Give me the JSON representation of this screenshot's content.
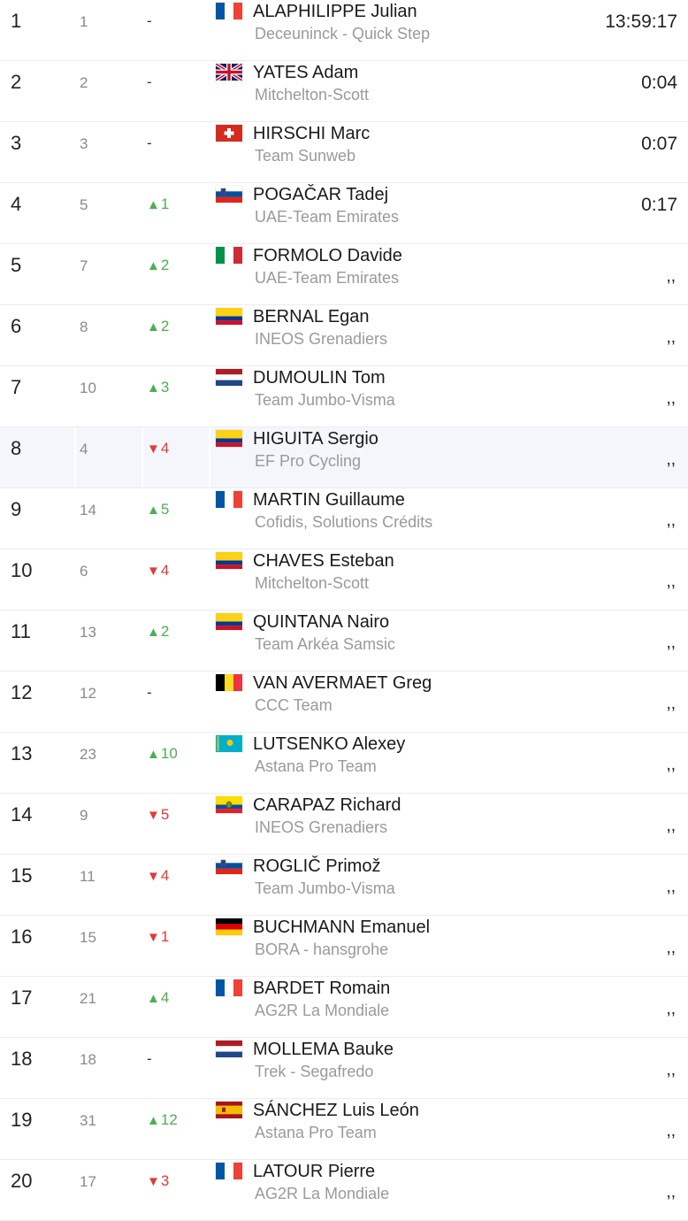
{
  "riders": [
    {
      "rank": "1",
      "prev": "1",
      "change": "-",
      "dir": "same",
      "flag": "FR",
      "name": "ALAPHILIPPE Julian",
      "team": "Deceuninck - Quick Step",
      "time": "13:59:17"
    },
    {
      "rank": "2",
      "prev": "2",
      "change": "-",
      "dir": "same",
      "flag": "GB",
      "name": "YATES Adam",
      "team": "Mitchelton-Scott",
      "time": "0:04"
    },
    {
      "rank": "3",
      "prev": "3",
      "change": "-",
      "dir": "same",
      "flag": "CH",
      "name": "HIRSCHI Marc",
      "team": "Team Sunweb",
      "time": "0:07"
    },
    {
      "rank": "4",
      "prev": "5",
      "change": "1",
      "dir": "up",
      "flag": "SI",
      "name": "POGAČAR Tadej",
      "team": "UAE-Team Emirates",
      "time": "0:17"
    },
    {
      "rank": "5",
      "prev": "7",
      "change": "2",
      "dir": "up",
      "flag": "IT",
      "name": "FORMOLO Davide",
      "team": "UAE-Team Emirates",
      "time": ",,"
    },
    {
      "rank": "6",
      "prev": "8",
      "change": "2",
      "dir": "up",
      "flag": "CO",
      "name": "BERNAL Egan",
      "team": "INEOS Grenadiers",
      "time": ",,"
    },
    {
      "rank": "7",
      "prev": "10",
      "change": "3",
      "dir": "up",
      "flag": "NL",
      "name": "DUMOULIN Tom",
      "team": "Team Jumbo-Visma",
      "time": ",,"
    },
    {
      "rank": "8",
      "prev": "4",
      "change": "4",
      "dir": "down",
      "flag": "CO",
      "name": "HIGUITA Sergio",
      "team": "EF Pro Cycling",
      "time": ",,",
      "highlight": true
    },
    {
      "rank": "9",
      "prev": "14",
      "change": "5",
      "dir": "up",
      "flag": "FR",
      "name": "MARTIN Guillaume",
      "team": "Cofidis, Solutions Crédits",
      "time": ",,"
    },
    {
      "rank": "10",
      "prev": "6",
      "change": "4",
      "dir": "down",
      "flag": "CO",
      "name": "CHAVES Esteban",
      "team": "Mitchelton-Scott",
      "time": ",,"
    },
    {
      "rank": "11",
      "prev": "13",
      "change": "2",
      "dir": "up",
      "flag": "CO",
      "name": "QUINTANA Nairo",
      "team": "Team Arkéa Samsic",
      "time": ",,"
    },
    {
      "rank": "12",
      "prev": "12",
      "change": "-",
      "dir": "same",
      "flag": "BE",
      "name": "VAN AVERMAET Greg",
      "team": "CCC Team",
      "time": ",,"
    },
    {
      "rank": "13",
      "prev": "23",
      "change": "10",
      "dir": "up",
      "flag": "KZ",
      "name": "LUTSENKO Alexey",
      "team": "Astana Pro Team",
      "time": ",,"
    },
    {
      "rank": "14",
      "prev": "9",
      "change": "5",
      "dir": "down",
      "flag": "EC",
      "name": "CARAPAZ Richard",
      "team": "INEOS Grenadiers",
      "time": ",,"
    },
    {
      "rank": "15",
      "prev": "11",
      "change": "4",
      "dir": "down",
      "flag": "SI",
      "name": "ROGLIČ Primož",
      "team": "Team Jumbo-Visma",
      "time": ",,"
    },
    {
      "rank": "16",
      "prev": "15",
      "change": "1",
      "dir": "down",
      "flag": "DE",
      "name": "BUCHMANN Emanuel",
      "team": "BORA - hansgrohe",
      "time": ",,"
    },
    {
      "rank": "17",
      "prev": "21",
      "change": "4",
      "dir": "up",
      "flag": "FR",
      "name": "BARDET Romain",
      "team": "AG2R La Mondiale",
      "time": ",,"
    },
    {
      "rank": "18",
      "prev": "18",
      "change": "-",
      "dir": "same",
      "flag": "NL",
      "name": "MOLLEMA Bauke",
      "team": "Trek - Segafredo",
      "time": ",,"
    },
    {
      "rank": "19",
      "prev": "31",
      "change": "12",
      "dir": "up",
      "flag": "ES",
      "name": "SÁNCHEZ Luis León",
      "team": "Astana Pro Team",
      "time": ",,"
    },
    {
      "rank": "20",
      "prev": "17",
      "change": "3",
      "dir": "down",
      "flag": "FR",
      "name": "LATOUR Pierre",
      "team": "AG2R La Mondiale",
      "time": ",,"
    }
  ],
  "colors": {
    "up": "#4caf50",
    "down": "#e53935",
    "highlight_row": "#f4f6fc"
  },
  "icons": {
    "up": "triangle-up-icon",
    "down": "triangle-down-icon"
  }
}
